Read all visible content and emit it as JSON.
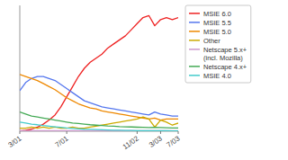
{
  "chart_data": {
    "type": "line",
    "categories": [
      "3/01",
      null,
      null,
      null,
      null,
      null,
      null,
      null,
      "7/01",
      null,
      null,
      null,
      null,
      null,
      null,
      null,
      null,
      null,
      null,
      null,
      "11/02",
      null,
      null,
      null,
      "3/03",
      null,
      null,
      "7/03"
    ],
    "series": [
      {
        "name": "MSIE 6.0",
        "color": "#ee2222",
        "values": [
          0.2,
          0.5,
          1.0,
          2.0,
          3.5,
          5.5,
          8.0,
          12.0,
          17.0,
          22.0,
          27.0,
          31.0,
          34.0,
          36.0,
          38.0,
          41.0,
          43.0,
          45.0,
          47.0,
          50.0,
          53.0,
          56.0,
          57.0,
          52.0,
          55.0,
          56.0,
          55.0,
          56.0
        ]
      },
      {
        "name": "MSIE 5.5",
        "color": "#5577ee",
        "values": [
          20.0,
          24.0,
          26.0,
          27.0,
          27.0,
          26.0,
          25.0,
          23.0,
          21.0,
          19.0,
          17.0,
          15.0,
          14.0,
          13.0,
          12.0,
          11.5,
          11.0,
          10.5,
          10.0,
          9.5,
          9.0,
          8.5,
          8.0,
          9.5,
          8.5,
          8.0,
          7.5,
          7.5
        ]
      },
      {
        "name": "MSIE 5.0",
        "color": "#ee8800",
        "values": [
          28.0,
          27.0,
          26.0,
          25.0,
          23.5,
          22.0,
          20.5,
          18.5,
          16.5,
          15.0,
          13.5,
          12.5,
          11.5,
          11.0,
          10.0,
          9.5,
          9.0,
          8.5,
          8.0,
          7.5,
          7.0,
          6.5,
          6.0,
          6.5,
          5.5,
          6.0,
          6.0,
          6.0
        ]
      },
      {
        "name": "Other",
        "color": "#ccaa00",
        "values": [
          1.5,
          1.5,
          2.0,
          1.5,
          2.0,
          1.5,
          2.0,
          1.5,
          1.5,
          2.0,
          1.5,
          1.5,
          2.0,
          2.5,
          3.0,
          3.5,
          4.0,
          4.5,
          5.0,
          5.5,
          6.0,
          7.0,
          6.0,
          2.0,
          5.5,
          4.5,
          3.0,
          4.0
        ]
      },
      {
        "name": "Netscape 5.x+\n(incl. Mozilla)",
        "color": "#cc99cc",
        "values": [
          0.3,
          0.3,
          0.3,
          0.3,
          0.3,
          0.3,
          0.3,
          0.3,
          0.3,
          0.3,
          0.3,
          0.3,
          0.3,
          0.3,
          0.3,
          0.3,
          0.3,
          0.3,
          0.3,
          0.3,
          0.3,
          0.3,
          0.3,
          0.3,
          0.3,
          0.3,
          0.3,
          0.3
        ]
      },
      {
        "name": "Netscape 4.x+",
        "color": "#44aa55",
        "values": [
          9.5,
          8.5,
          7.5,
          7.0,
          6.5,
          6.0,
          5.5,
          5.0,
          4.5,
          4.0,
          3.8,
          3.5,
          3.2,
          3.0,
          2.8,
          2.6,
          2.5,
          2.3,
          2.2,
          2.1,
          2.0,
          1.9,
          1.8,
          1.9,
          1.8,
          1.7,
          1.6,
          1.6
        ]
      },
      {
        "name": "MSIE 4.0",
        "color": "#44cccc",
        "values": [
          4.5,
          4.0,
          3.5,
          3.2,
          2.8,
          2.5,
          2.2,
          1.9,
          1.6,
          1.4,
          1.2,
          1.0,
          0.9,
          0.8,
          0.7,
          0.6,
          0.5,
          0.5,
          0.4,
          0.4,
          0.3,
          0.3,
          0.3,
          0.3,
          0.3,
          0.3,
          0.2,
          0.2
        ]
      }
    ],
    "ylim": [
      0,
      62
    ],
    "tick_labels": "x",
    "legend": "right"
  }
}
